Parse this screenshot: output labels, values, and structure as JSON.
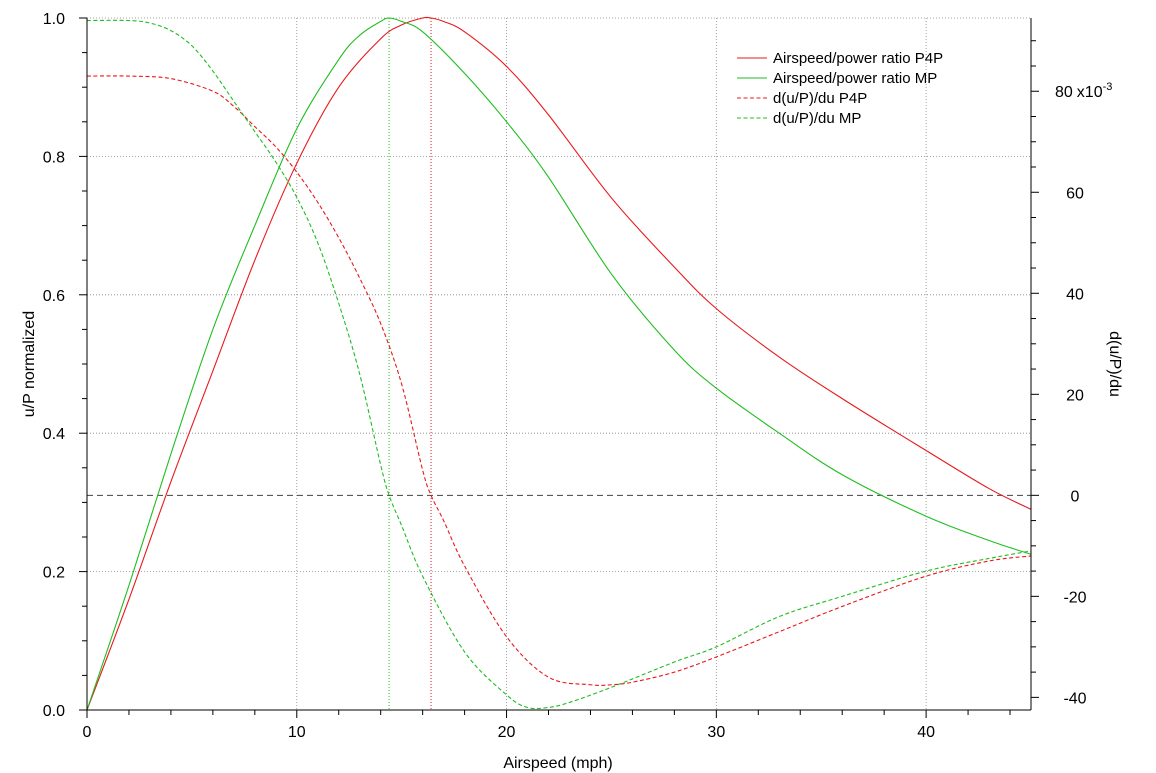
{
  "chart_data": {
    "type": "line",
    "xlabel": "Airspeed (mph)",
    "ylabel_left": "u/P normalized",
    "ylabel_right": "d(u/P)/du",
    "xlim": [
      0,
      45
    ],
    "ylim_left": [
      0,
      1.0
    ],
    "ylim_right": [
      -42.5,
      94.5
    ],
    "right_axis_multiplier_label": "x10",
    "right_axis_multiplier_exp": "-3",
    "x_ticks": [
      "0",
      "10",
      "20",
      "30",
      "40"
    ],
    "left_ticks": [
      "0.0",
      "0.2",
      "0.4",
      "0.6",
      "0.8",
      "1.0"
    ],
    "right_ticks": [
      "-40",
      "-20",
      "0",
      "20",
      "40",
      "60",
      "80"
    ],
    "grid": true,
    "legend_position": "top-right",
    "colors": {
      "P4P": "#e8191c",
      "MP": "#1fbe1f"
    },
    "series": [
      {
        "name": "Airspeed/power ratio P4P",
        "axis": "left",
        "style": "solid",
        "color": "#e8191c",
        "x": [
          0,
          2,
          4,
          6,
          8,
          10,
          12,
          14,
          15,
          16,
          16.4,
          17,
          18,
          20,
          22,
          25,
          28,
          30,
          33,
          36,
          40,
          43,
          45
        ],
        "y": [
          0,
          0.16,
          0.33,
          0.49,
          0.65,
          0.79,
          0.9,
          0.97,
          0.99,
          1.0,
          1.0,
          0.995,
          0.98,
          0.93,
          0.86,
          0.74,
          0.64,
          0.58,
          0.51,
          0.45,
          0.375,
          0.32,
          0.29
        ]
      },
      {
        "name": "Airspeed/power ratio MP",
        "axis": "left",
        "style": "solid",
        "color": "#1fbe1f",
        "x": [
          0,
          2,
          4,
          6,
          8,
          10,
          12,
          13,
          14,
          14.4,
          15,
          16,
          18,
          20,
          22,
          25,
          28,
          30,
          33,
          36,
          40,
          43,
          45
        ],
        "y": [
          0,
          0.18,
          0.37,
          0.55,
          0.7,
          0.84,
          0.94,
          0.975,
          0.995,
          1.0,
          0.995,
          0.98,
          0.92,
          0.85,
          0.77,
          0.63,
          0.52,
          0.465,
          0.4,
          0.34,
          0.28,
          0.245,
          0.225
        ]
      },
      {
        "name": "d(u/P)/du P4P",
        "axis": "right",
        "style": "dashed",
        "color": "#e8191c",
        "x": [
          0,
          2,
          4,
          6,
          7,
          8,
          9,
          10,
          11,
          12,
          13,
          14,
          15,
          16,
          16.4,
          17,
          18,
          20,
          22,
          24,
          25,
          26,
          28,
          30,
          33,
          36,
          40,
          43,
          45
        ],
        "y": [
          83,
          83,
          82.5,
          80,
          77,
          73,
          69,
          64,
          58,
          51,
          43,
          34,
          22,
          5,
          0,
          -5,
          -14,
          -28,
          -36,
          -37.5,
          -37.5,
          -37,
          -35,
          -32,
          -27,
          -22,
          -16,
          -13,
          -12
        ]
      },
      {
        "name": "d(u/P)/du MP",
        "axis": "right",
        "style": "dashed",
        "color": "#1fbe1f",
        "x": [
          0,
          2,
          3,
          4,
          5,
          6,
          7,
          8,
          9,
          10,
          11,
          12,
          13,
          14,
          14.4,
          15,
          16,
          18,
          20,
          21,
          22,
          23,
          25,
          28,
          30,
          33,
          36,
          40,
          43,
          45
        ],
        "y": [
          94,
          94,
          93.5,
          92,
          89,
          84,
          78,
          72,
          66,
          59,
          50,
          38,
          24,
          6,
          0,
          -6,
          -16,
          -31,
          -39.5,
          -42,
          -42,
          -41,
          -38,
          -33,
          -30,
          -24,
          -20,
          -15,
          -12.5,
          -11
        ]
      }
    ],
    "reference_lines": [
      {
        "kind": "vertical",
        "axis_x": 14.4,
        "color": "#1fbe1f",
        "style": "dotted"
      },
      {
        "kind": "vertical",
        "axis_x": 16.4,
        "color": "#e8191c",
        "style": "dotted"
      },
      {
        "kind": "horizontal",
        "axis": "right",
        "value": 0,
        "color": "#444444",
        "style": "dashed"
      }
    ]
  }
}
